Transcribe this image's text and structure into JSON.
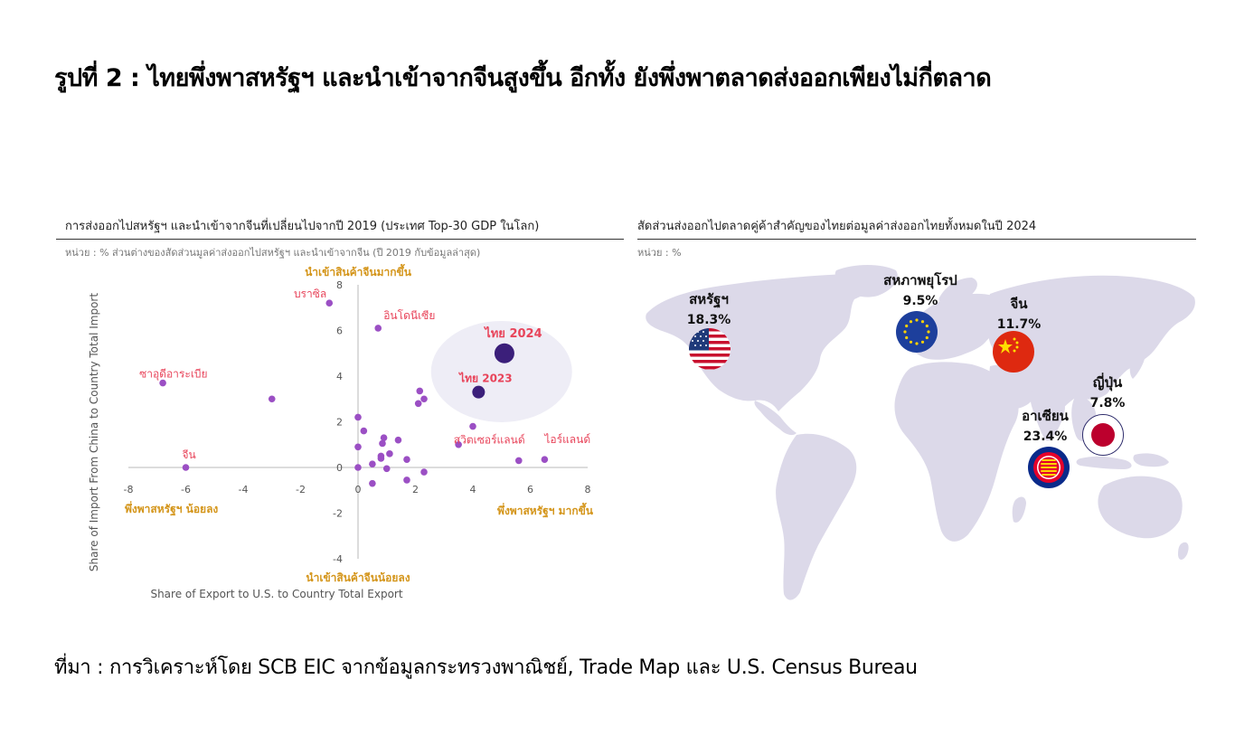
{
  "main_title": "รูปที่ 2 : ไทยพึ่งพาสหรัฐฯ และนำเข้าจากจีนสูงขึ้น อีกทั้ง ยังพึ่งพาตลาดส่งออกเพียงไม่กี่ตลาด",
  "source": "ที่มา : การวิเคราะห์โดย SCB EIC จากข้อมูลกระทรวงพาณิชย์, Trade Map และ U.S. Census Bureau",
  "left_panel": {
    "title": "การส่งออกไปสหรัฐฯ และนำเข้าจากจีนที่เปลี่ยนไปจากปี 2019 (ประเทศ Top-30 GDP ในโลก)",
    "unit": "หน่วย : % ส่วนต่างของสัดส่วนมูลค่าส่งออกไปสหรัฐฯ และนำเข้าจากจีน (ปี 2019 กับข้อมูลล่าสุด)"
  },
  "right_panel": {
    "title": "สัดส่วนส่งออกไปตลาดคู่ค้าสำคัญของไทยต่อมูลค่าส่งออกไทยทั้งหมดในปี 2024",
    "unit": "หน่วย : %"
  },
  "chart_data": [
    {
      "type": "scatter",
      "title": "การส่งออกไปสหรัฐฯ และนำเข้าจากจีนที่เปลี่ยนไปจากปี 2019 (ประเทศ Top-30 GDP ในโลก)",
      "xlabel": "Share of Export to U.S. to Country Total Export",
      "ylabel": "Share of Import From China to Country Total Import",
      "xlim": [
        -8,
        8
      ],
      "ylim": [
        -4,
        8
      ],
      "xticks": [
        "-8",
        "-6",
        "-4",
        "-2",
        "0",
        "2",
        "4",
        "6",
        "8"
      ],
      "yticks": [
        "-4",
        "-2",
        "0",
        "2",
        "4",
        "6",
        "8"
      ],
      "grid": false,
      "quadrant_labels": {
        "top": "นำเข้าสินค้าจีนมากขึ้น",
        "bottom": "นำเข้าสินค้าจีนน้อยลง",
        "left": "พึ่งพาสหรัฐฯ น้อยลง",
        "right": "พึ่งพาสหรัฐฯ มากขึ้น"
      },
      "labeled_points": [
        {
          "label": "บราซิล",
          "x": -1.0,
          "y": 7.2
        },
        {
          "label": "อินโดนีเซีย",
          "x": 0.7,
          "y": 6.1
        },
        {
          "label": "ซาอุดีอาระเบีย",
          "x": -6.8,
          "y": 3.7
        },
        {
          "label": "จีน",
          "x": -6.0,
          "y": 0.0
        },
        {
          "label": "สวิตเซอร์แลนด์",
          "x": 5.6,
          "y": 0.3
        },
        {
          "label": "ไอร์แลนด์",
          "x": 6.5,
          "y": 0.35
        }
      ],
      "highlight_points": [
        {
          "label": "ไทย 2024",
          "x": 5.1,
          "y": 5.0
        },
        {
          "label": "ไทย 2023",
          "x": 4.2,
          "y": 3.3
        }
      ],
      "other_points": [
        {
          "x": -3.0,
          "y": 3.0
        },
        {
          "x": 0.0,
          "y": 2.2
        },
        {
          "x": 0.2,
          "y": 1.6
        },
        {
          "x": 0.0,
          "y": 0.9
        },
        {
          "x": 0.0,
          "y": 0.0
        },
        {
          "x": 0.5,
          "y": 0.15
        },
        {
          "x": 0.8,
          "y": 0.5
        },
        {
          "x": 0.9,
          "y": 1.3
        },
        {
          "x": 0.85,
          "y": 1.05
        },
        {
          "x": 1.1,
          "y": 0.6
        },
        {
          "x": 1.0,
          "y": -0.05
        },
        {
          "x": 0.5,
          "y": -0.7
        },
        {
          "x": 0.8,
          "y": 0.4
        },
        {
          "x": 1.4,
          "y": 1.2
        },
        {
          "x": 1.7,
          "y": 0.35
        },
        {
          "x": 1.7,
          "y": -0.55
        },
        {
          "x": 2.3,
          "y": -0.2
        },
        {
          "x": 2.1,
          "y": 2.8
        },
        {
          "x": 2.15,
          "y": 3.35
        },
        {
          "x": 2.3,
          "y": 3.0
        },
        {
          "x": 4.0,
          "y": 1.8
        },
        {
          "x": 3.5,
          "y": 1.0
        }
      ],
      "colors": {
        "point": "#9b4fc4",
        "highlight": "#3b1f7a",
        "label": "#e8445a",
        "quadrant": "#d4951a",
        "ellipse": "#eeedf6"
      }
    },
    {
      "type": "bubble-map",
      "title": "สัดส่วนส่งออกไปตลาดคู่ค้าสำคัญของไทยต่อมูลค่าส่งออกไทยทั้งหมดในปี 2024",
      "unit": "%",
      "markets": [
        {
          "name": "สหรัฐฯ",
          "value": "18.3%",
          "flag": "us-flag-icon"
        },
        {
          "name": "สหภาพยุโรป",
          "value": "9.5%",
          "flag": "eu-flag-icon"
        },
        {
          "name": "จีน",
          "value": "11.7%",
          "flag": "china-flag-icon"
        },
        {
          "name": "ญี่ปุ่น",
          "value": "7.8%",
          "flag": "japan-flag-icon"
        },
        {
          "name": "อาเซียน",
          "value": "23.4%",
          "flag": "asean-flag-icon"
        }
      ],
      "colors": {
        "land": "#dcd9e9"
      }
    }
  ]
}
